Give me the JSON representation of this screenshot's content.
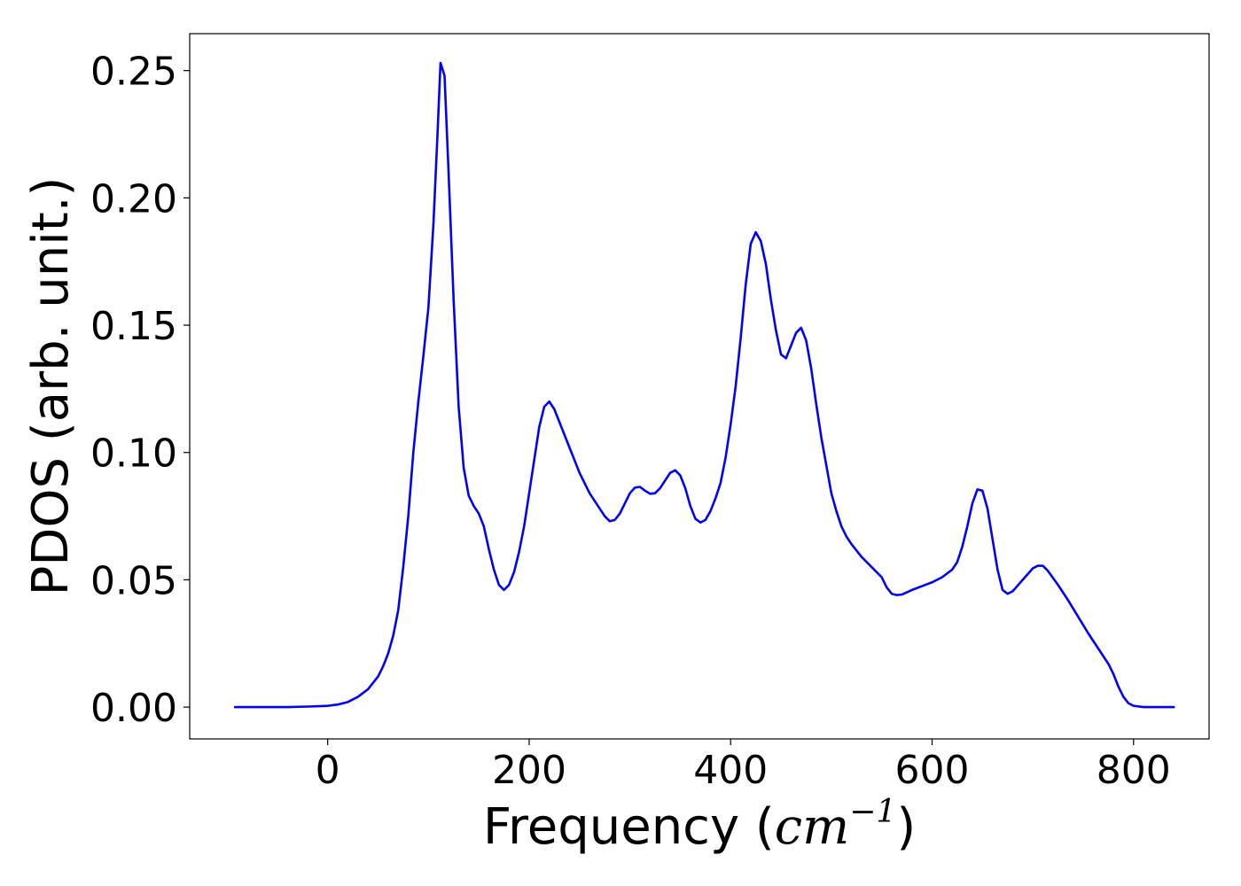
{
  "chart_data": {
    "type": "line",
    "title": "",
    "xlabel_text": "Frequency (",
    "xlabel_unit": "cm",
    "xlabel_exp": "−1",
    "xlabel_close": ")",
    "ylabel": "PDOS (arb. unit.)",
    "xlim": [
      -137,
      875
    ],
    "ylim": [
      -0.0125,
      0.2645
    ],
    "xticks": [
      0,
      200,
      400,
      600,
      800
    ],
    "xtick_labels": [
      "0",
      "200",
      "400",
      "600",
      "800"
    ],
    "yticks": [
      0.0,
      0.05,
      0.1,
      0.15,
      0.2,
      0.25
    ],
    "ytick_labels": [
      "0.00",
      "0.05",
      "0.10",
      "0.15",
      "0.20",
      "0.25"
    ],
    "grid": false,
    "legend": "none",
    "series": [
      {
        "color": "#0000ff",
        "points": [
          [
            -92,
            0.0
          ],
          [
            -40,
            0.0
          ],
          [
            -20,
            0.0002
          ],
          [
            0,
            0.0005
          ],
          [
            10,
            0.001
          ],
          [
            20,
            0.002
          ],
          [
            30,
            0.004
          ],
          [
            40,
            0.007
          ],
          [
            50,
            0.012
          ],
          [
            55,
            0.016
          ],
          [
            60,
            0.021
          ],
          [
            65,
            0.028
          ],
          [
            70,
            0.038
          ],
          [
            75,
            0.055
          ],
          [
            80,
            0.075
          ],
          [
            85,
            0.1
          ],
          [
            90,
            0.12
          ],
          [
            95,
            0.138
          ],
          [
            100,
            0.157
          ],
          [
            105,
            0.19
          ],
          [
            109,
            0.225
          ],
          [
            112,
            0.253
          ],
          [
            116,
            0.248
          ],
          [
            120,
            0.21
          ],
          [
            125,
            0.16
          ],
          [
            130,
            0.118
          ],
          [
            135,
            0.094
          ],
          [
            140,
            0.083
          ],
          [
            145,
            0.079
          ],
          [
            150,
            0.076
          ],
          [
            155,
            0.071
          ],
          [
            160,
            0.062
          ],
          [
            165,
            0.054
          ],
          [
            170,
            0.048
          ],
          [
            175,
            0.046
          ],
          [
            180,
            0.048
          ],
          [
            185,
            0.053
          ],
          [
            190,
            0.061
          ],
          [
            195,
            0.071
          ],
          [
            200,
            0.084
          ],
          [
            205,
            0.097
          ],
          [
            210,
            0.11
          ],
          [
            215,
            0.118
          ],
          [
            220,
            0.12
          ],
          [
            225,
            0.117
          ],
          [
            230,
            0.112
          ],
          [
            235,
            0.107
          ],
          [
            240,
            0.102
          ],
          [
            250,
            0.092
          ],
          [
            260,
            0.084
          ],
          [
            270,
            0.078
          ],
          [
            275,
            0.075
          ],
          [
            280,
            0.073
          ],
          [
            285,
            0.0735
          ],
          [
            290,
            0.076
          ],
          [
            295,
            0.08
          ],
          [
            300,
            0.084
          ],
          [
            305,
            0.0862
          ],
          [
            310,
            0.0865
          ],
          [
            315,
            0.085
          ],
          [
            320,
            0.0838
          ],
          [
            325,
            0.084
          ],
          [
            330,
            0.086
          ],
          [
            335,
            0.089
          ],
          [
            340,
            0.092
          ],
          [
            345,
            0.093
          ],
          [
            350,
            0.091
          ],
          [
            355,
            0.086
          ],
          [
            360,
            0.079
          ],
          [
            365,
            0.074
          ],
          [
            370,
            0.0725
          ],
          [
            375,
            0.0735
          ],
          [
            380,
            0.077
          ],
          [
            385,
            0.082
          ],
          [
            390,
            0.088
          ],
          [
            395,
            0.098
          ],
          [
            400,
            0.111
          ],
          [
            405,
            0.126
          ],
          [
            410,
            0.145
          ],
          [
            415,
            0.166
          ],
          [
            420,
            0.182
          ],
          [
            425,
            0.1865
          ],
          [
            430,
            0.183
          ],
          [
            435,
            0.174
          ],
          [
            440,
            0.16
          ],
          [
            445,
            0.148
          ],
          [
            450,
            0.1385
          ],
          [
            455,
            0.137
          ],
          [
            460,
            0.142
          ],
          [
            465,
            0.147
          ],
          [
            470,
            0.149
          ],
          [
            475,
            0.144
          ],
          [
            480,
            0.133
          ],
          [
            485,
            0.119
          ],
          [
            490,
            0.106
          ],
          [
            495,
            0.095
          ],
          [
            500,
            0.084
          ],
          [
            505,
            0.077
          ],
          [
            510,
            0.071
          ],
          [
            515,
            0.067
          ],
          [
            520,
            0.064
          ],
          [
            530,
            0.059
          ],
          [
            540,
            0.055
          ],
          [
            550,
            0.051
          ],
          [
            555,
            0.047
          ],
          [
            560,
            0.0445
          ],
          [
            565,
            0.044
          ],
          [
            570,
            0.0442
          ],
          [
            580,
            0.046
          ],
          [
            590,
            0.0475
          ],
          [
            600,
            0.049
          ],
          [
            610,
            0.051
          ],
          [
            620,
            0.054
          ],
          [
            625,
            0.057
          ],
          [
            630,
            0.063
          ],
          [
            635,
            0.071
          ],
          [
            640,
            0.08
          ],
          [
            645,
            0.0855
          ],
          [
            650,
            0.085
          ],
          [
            655,
            0.078
          ],
          [
            660,
            0.066
          ],
          [
            665,
            0.054
          ],
          [
            670,
            0.046
          ],
          [
            675,
            0.0445
          ],
          [
            680,
            0.0455
          ],
          [
            690,
            0.05
          ],
          [
            700,
            0.0545
          ],
          [
            705,
            0.0555
          ],
          [
            710,
            0.0555
          ],
          [
            715,
            0.0535
          ],
          [
            725,
            0.048
          ],
          [
            735,
            0.042
          ],
          [
            745,
            0.0355
          ],
          [
            755,
            0.029
          ],
          [
            765,
            0.023
          ],
          [
            775,
            0.017
          ],
          [
            780,
            0.013
          ],
          [
            785,
            0.008
          ],
          [
            790,
            0.004
          ],
          [
            795,
            0.0015
          ],
          [
            800,
            0.0005
          ],
          [
            810,
            0.0
          ],
          [
            840,
            0.0
          ]
        ]
      }
    ]
  }
}
